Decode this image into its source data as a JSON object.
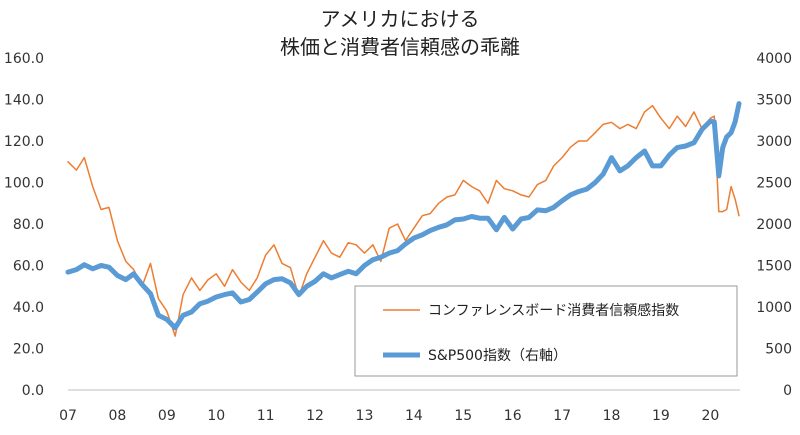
{
  "chart_data": {
    "type": "line",
    "title_lines": [
      "アメリカにおける",
      "株価と消費者信頼感の乖離"
    ],
    "x_tick_labels": [
      "07",
      "08",
      "09",
      "10",
      "11",
      "12",
      "13",
      "14",
      "15",
      "16",
      "17",
      "18",
      "19",
      "20"
    ],
    "x_range": [
      2007,
      2020.6
    ],
    "y_left": {
      "min": 0,
      "max": 160,
      "ticks": [
        "0.0",
        "20.0",
        "40.0",
        "60.0",
        "80.0",
        "100.0",
        "120.0",
        "140.0",
        "160.0"
      ]
    },
    "y_right": {
      "min": 0,
      "max": 4000,
      "ticks": [
        "0",
        "500",
        "1000",
        "1500",
        "2000",
        "2500",
        "3000",
        "3500",
        "4000"
      ]
    },
    "legend_position": "bottom-right",
    "grid": false,
    "series": [
      {
        "name": "コンファレンスボード消費者信頼感指数",
        "axis": "left",
        "color": "#ED7D31",
        "x": [
          2007.0,
          2007.17,
          2007.33,
          2007.5,
          2007.67,
          2007.83,
          2008.0,
          2008.17,
          2008.33,
          2008.5,
          2008.67,
          2008.83,
          2009.0,
          2009.17,
          2009.33,
          2009.5,
          2009.67,
          2009.83,
          2010.0,
          2010.17,
          2010.33,
          2010.5,
          2010.67,
          2010.83,
          2011.0,
          2011.17,
          2011.33,
          2011.5,
          2011.67,
          2011.83,
          2012.0,
          2012.17,
          2012.33,
          2012.5,
          2012.67,
          2012.83,
          2013.0,
          2013.17,
          2013.33,
          2013.5,
          2013.67,
          2013.83,
          2014.0,
          2014.17,
          2014.33,
          2014.5,
          2014.67,
          2014.83,
          2015.0,
          2015.17,
          2015.33,
          2015.5,
          2015.67,
          2015.83,
          2016.0,
          2016.17,
          2016.33,
          2016.5,
          2016.67,
          2016.83,
          2017.0,
          2017.17,
          2017.33,
          2017.5,
          2017.67,
          2017.83,
          2018.0,
          2018.17,
          2018.33,
          2018.5,
          2018.67,
          2018.83,
          2019.0,
          2019.17,
          2019.33,
          2019.5,
          2019.67,
          2019.83,
          2020.0,
          2020.08,
          2020.17,
          2020.25,
          2020.33,
          2020.42,
          2020.5,
          2020.58
        ],
        "values": [
          110,
          106,
          112,
          98,
          87,
          88,
          72,
          62,
          58,
          50,
          61,
          44,
          38,
          26,
          46,
          54,
          48,
          53,
          56,
          50,
          58,
          52,
          48,
          54,
          65,
          70,
          61,
          59,
          45,
          56,
          64,
          72,
          66,
          64,
          71,
          70,
          66,
          70,
          62,
          78,
          80,
          72,
          78,
          84,
          85,
          90,
          93,
          94,
          101,
          98,
          96,
          90,
          101,
          97,
          96,
          94,
          93,
          99,
          101,
          108,
          112,
          117,
          120,
          120,
          124,
          128,
          129,
          126,
          128,
          126,
          134,
          137,
          131,
          126,
          132,
          127,
          134,
          126,
          131,
          132,
          86,
          86,
          87,
          98,
          92,
          84
        ]
      },
      {
        "name": "S&P500指数（右軸）",
        "axis": "right",
        "color": "#5B9BD5",
        "x": [
          2007.0,
          2007.17,
          2007.33,
          2007.5,
          2007.67,
          2007.83,
          2008.0,
          2008.17,
          2008.33,
          2008.5,
          2008.67,
          2008.83,
          2009.0,
          2009.17,
          2009.33,
          2009.5,
          2009.67,
          2009.83,
          2010.0,
          2010.17,
          2010.33,
          2010.5,
          2010.67,
          2010.83,
          2011.0,
          2011.17,
          2011.33,
          2011.5,
          2011.67,
          2011.83,
          2012.0,
          2012.17,
          2012.33,
          2012.5,
          2012.67,
          2012.83,
          2013.0,
          2013.17,
          2013.33,
          2013.5,
          2013.67,
          2013.83,
          2014.0,
          2014.17,
          2014.33,
          2014.5,
          2014.67,
          2014.83,
          2015.0,
          2015.17,
          2015.33,
          2015.5,
          2015.67,
          2015.83,
          2016.0,
          2016.17,
          2016.33,
          2016.5,
          2016.67,
          2016.83,
          2017.0,
          2017.17,
          2017.33,
          2017.5,
          2017.67,
          2017.83,
          2018.0,
          2018.17,
          2018.33,
          2018.5,
          2018.67,
          2018.83,
          2019.0,
          2019.17,
          2019.33,
          2019.5,
          2019.67,
          2019.83,
          2020.0,
          2020.08,
          2020.17,
          2020.25,
          2020.33,
          2020.42,
          2020.5,
          2020.58
        ],
        "values": [
          1420,
          1450,
          1510,
          1460,
          1500,
          1480,
          1380,
          1330,
          1400,
          1270,
          1160,
          900,
          850,
          750,
          900,
          940,
          1040,
          1070,
          1120,
          1150,
          1170,
          1060,
          1090,
          1180,
          1280,
          1330,
          1340,
          1290,
          1150,
          1250,
          1310,
          1400,
          1350,
          1390,
          1430,
          1400,
          1500,
          1570,
          1600,
          1650,
          1680,
          1760,
          1830,
          1870,
          1920,
          1960,
          1990,
          2050,
          2060,
          2090,
          2070,
          2070,
          1930,
          2080,
          1940,
          2060,
          2080,
          2170,
          2160,
          2200,
          2280,
          2350,
          2390,
          2420,
          2500,
          2600,
          2800,
          2640,
          2700,
          2800,
          2880,
          2700,
          2700,
          2830,
          2920,
          2940,
          2980,
          3140,
          3240,
          3230,
          2580,
          2920,
          3050,
          3100,
          3230,
          3450
        ]
      }
    ]
  }
}
